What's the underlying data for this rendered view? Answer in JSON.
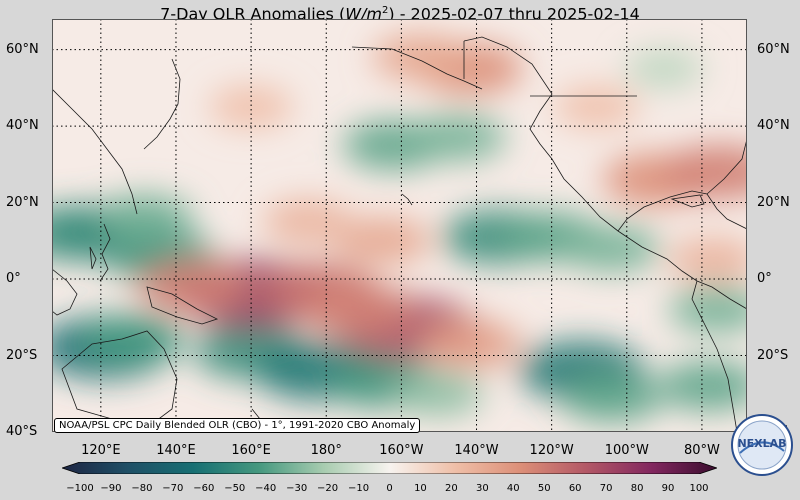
{
  "title": {
    "prefix": "7-Day OLR Anomalies (",
    "unit_base": "W/m",
    "unit_exp": "2",
    "suffix": ") - 2025-02-07 thru 2025-02-14"
  },
  "map": {
    "lat_range": [
      -40,
      68
    ],
    "lon_range_east": [
      107,
      292
    ],
    "lat_labels": [
      {
        "text": "60°N",
        "lat": 60
      },
      {
        "text": "40°N",
        "lat": 40
      },
      {
        "text": "20°N",
        "lat": 20
      },
      {
        "text": "0°",
        "lat": 0
      },
      {
        "text": "20°S",
        "lat": -20
      },
      {
        "text": "40°S",
        "lat": -40
      }
    ],
    "lon_labels": [
      {
        "text": "120°E",
        "lon": 120
      },
      {
        "text": "140°E",
        "lon": 140
      },
      {
        "text": "160°E",
        "lon": 160
      },
      {
        "text": "180°",
        "lon": 180
      },
      {
        "text": "160°W",
        "lon": 200
      },
      {
        "text": "140°W",
        "lon": 220
      },
      {
        "text": "120°W",
        "lon": 240
      },
      {
        "text": "100°W",
        "lon": 260
      },
      {
        "text": "80°W",
        "lon": 280
      }
    ],
    "gridlines": "dotted",
    "anomaly_features": [
      {
        "lon": 124,
        "lat": 12,
        "v": -55
      },
      {
        "lon": 113,
        "lat": 12,
        "v": -45
      },
      {
        "lon": 136,
        "lat": 6,
        "v": -40
      },
      {
        "lon": 132,
        "lat": 16,
        "v": -30
      },
      {
        "lon": 121,
        "lat": -18,
        "v": -60
      },
      {
        "lon": 128,
        "lat": -16,
        "v": -40
      },
      {
        "lon": 160,
        "lat": -19,
        "v": -45
      },
      {
        "lon": 178,
        "lat": -24,
        "v": -55
      },
      {
        "lon": 195,
        "lat": -27,
        "v": -40
      },
      {
        "lon": 210,
        "lat": -30,
        "v": -25
      },
      {
        "lon": 248,
        "lat": -24,
        "v": -55
      },
      {
        "lon": 256,
        "lat": -31,
        "v": -35
      },
      {
        "lon": 226,
        "lat": 11,
        "v": -45
      },
      {
        "lon": 240,
        "lat": 11,
        "v": -35
      },
      {
        "lon": 256,
        "lat": 8,
        "v": -30
      },
      {
        "lon": 198,
        "lat": 35,
        "v": -35
      },
      {
        "lon": 215,
        "lat": 37,
        "v": -30
      },
      {
        "lon": 284,
        "lat": -8,
        "v": -30
      },
      {
        "lon": 282,
        "lat": -28,
        "v": -35
      },
      {
        "lon": 270,
        "lat": 55,
        "v": -15
      },
      {
        "lon": 160,
        "lat": -4,
        "v": 75
      },
      {
        "lon": 145,
        "lat": -2,
        "v": 45
      },
      {
        "lon": 178,
        "lat": -3,
        "v": 50
      },
      {
        "lon": 202,
        "lat": -13,
        "v": 65
      },
      {
        "lon": 188,
        "lat": -8,
        "v": 45
      },
      {
        "lon": 218,
        "lat": -17,
        "v": 35
      },
      {
        "lon": 195,
        "lat": 10,
        "v": 30
      },
      {
        "lon": 175,
        "lat": 15,
        "v": 25
      },
      {
        "lon": 218,
        "lat": 55,
        "v": 40
      },
      {
        "lon": 205,
        "lat": 58,
        "v": 30
      },
      {
        "lon": 268,
        "lat": 26,
        "v": 40
      },
      {
        "lon": 285,
        "lat": 28,
        "v": 45
      },
      {
        "lon": 160,
        "lat": 45,
        "v": 20
      },
      {
        "lon": 252,
        "lat": 45,
        "v": 20
      },
      {
        "lon": 283,
        "lat": 5,
        "v": 25
      }
    ]
  },
  "credit": "NOAA/PSL CPC Daily Blended OLR (CBO) - 1°, 1991-2020 CBO Anomaly",
  "colorbar": {
    "ticks": [
      "−100",
      "−90",
      "−80",
      "−70",
      "−60",
      "−50",
      "−40",
      "−30",
      "−20",
      "−10",
      "0",
      "10",
      "20",
      "30",
      "40",
      "50",
      "60",
      "70",
      "80",
      "90",
      "100"
    ],
    "min": -100,
    "max": 100,
    "stops": [
      {
        "v": -100,
        "c": "#1d2543"
      },
      {
        "v": -80,
        "c": "#1f4f66"
      },
      {
        "v": -60,
        "c": "#176f73"
      },
      {
        "v": -40,
        "c": "#45987f"
      },
      {
        "v": -20,
        "c": "#a8ccb0"
      },
      {
        "v": 0,
        "c": "#f7f3ef"
      },
      {
        "v": 20,
        "c": "#efbfa8"
      },
      {
        "v": 40,
        "c": "#dc8f78"
      },
      {
        "v": 60,
        "c": "#b35866"
      },
      {
        "v": 80,
        "c": "#82275f"
      },
      {
        "v": 100,
        "c": "#3a0d2e"
      }
    ]
  },
  "logo": {
    "text": "NEXLAB"
  }
}
